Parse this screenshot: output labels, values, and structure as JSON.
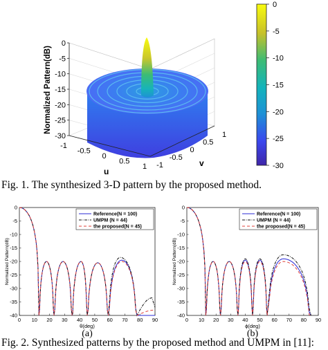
{
  "captions": {
    "fig1": "Fig. 1. The synthesized 3-D pattern by the proposed method.",
    "fig2": "Fig. 2. Synthesized patterns by the proposed method and UMPM in [11]:"
  },
  "chart_data": [
    {
      "type": "surface3d",
      "zlabel": "Normalized Pattern(dB)",
      "xlabel": "u",
      "ylabel": "v",
      "zlim": [
        -30,
        0
      ],
      "zticks": [
        "0",
        "-5",
        "-10",
        "-15",
        "-20",
        "-25",
        "-30"
      ],
      "uticks": [
        "-1",
        "-0.5",
        "0",
        "0.5",
        "1"
      ],
      "vticks": [
        "-1",
        "-0.5",
        "0",
        "0.5",
        "1"
      ],
      "colorbar": {
        "ticks": [
          "0",
          "-5",
          "-10",
          "-15",
          "-20",
          "-25",
          "-30"
        ],
        "colors": [
          "#f9fb0e",
          "#17bdae",
          "#1e91d6",
          "#3b47ee",
          "#3e26a8"
        ]
      }
    },
    {
      "type": "line",
      "panel_label": "(a)",
      "xlabel": "θ(deg)",
      "ylabel": "Normalized Pattern(dB)",
      "xlim": [
        0,
        90
      ],
      "ylim": [
        -40,
        0
      ],
      "xticks": [
        "0",
        "10",
        "20",
        "30",
        "40",
        "50",
        "60",
        "70",
        "80",
        "90"
      ],
      "yticks": [
        "0",
        "-5",
        "-10",
        "-15",
        "-20",
        "-25",
        "-30",
        "-35",
        "-40"
      ],
      "legend": "top-right",
      "nulls": [
        13,
        23,
        35,
        45,
        59,
        78
      ],
      "series": [
        {
          "name": "Reference(N = 100)",
          "color": "#2a2ad6",
          "dash": "",
          "peaks": [
            [
              18,
              -20
            ],
            [
              29,
              -20
            ],
            [
              41,
              -20
            ],
            [
              52,
              -20.5
            ],
            [
              68,
              -19.5
            ]
          ],
          "tail": [
            [
              90,
              -40
            ]
          ]
        },
        {
          "name": "UMPM (N = 44)",
          "color": "#111111",
          "dash": "4,1.5,1,1.5",
          "peaks": [
            [
              18,
              -20
            ],
            [
              29,
              -20
            ],
            [
              41,
              -20
            ],
            [
              52,
              -20.5
            ],
            [
              67,
              -18.5
            ]
          ],
          "tail": [
            [
              88,
              -33.5
            ],
            [
              90,
              -37
            ]
          ]
        },
        {
          "name": "the proposed(N = 45)",
          "color": "#e0403a",
          "dash": "4,3",
          "peaks": [
            [
              18,
              -20
            ],
            [
              29,
              -20
            ],
            [
              41,
              -20
            ],
            [
              52,
              -20.5
            ],
            [
              68,
              -20
            ]
          ],
          "tail": [
            [
              90,
              -38
            ]
          ]
        }
      ]
    },
    {
      "type": "line",
      "panel_label": "(b)",
      "xlabel": "ϕ(deg)",
      "ylabel": "Normalized Pattern(dB)",
      "xlim": [
        0,
        90
      ],
      "ylim": [
        -40,
        0
      ],
      "xticks": [
        "0",
        "10",
        "20",
        "30",
        "40",
        "50",
        "60",
        "70",
        "80",
        "90"
      ],
      "yticks": [
        "0",
        "-5",
        "-10",
        "-15",
        "-20",
        "-25",
        "-30",
        "-35",
        "-40"
      ],
      "legend": "top-right",
      "nulls": [
        13,
        23,
        35,
        45,
        55,
        85
      ],
      "series": [
        {
          "name": "Reference(N = 100)",
          "color": "#2a2ad6",
          "dash": "",
          "peaks": [
            [
              18,
              -20
            ],
            [
              29,
              -20
            ],
            [
              40,
              -19.5
            ],
            [
              50,
              -19.5
            ],
            [
              66,
              -19
            ]
          ],
          "tail": []
        },
        {
          "name": "UMPM (N = 44)",
          "color": "#111111",
          "dash": "4,1.5,1,1.5",
          "peaks": [
            [
              18,
              -20
            ],
            [
              29,
              -20
            ],
            [
              40,
              -19
            ],
            [
              50,
              -19
            ],
            [
              66,
              -17.5
            ]
          ],
          "tail": []
        },
        {
          "name": "the proposed(N = 45)",
          "color": "#e0403a",
          "dash": "4,3",
          "peaks": [
            [
              18,
              -20
            ],
            [
              29,
              -20
            ],
            [
              40,
              -20
            ],
            [
              50,
              -20
            ],
            [
              66,
              -20
            ]
          ],
          "tail": []
        }
      ]
    }
  ]
}
